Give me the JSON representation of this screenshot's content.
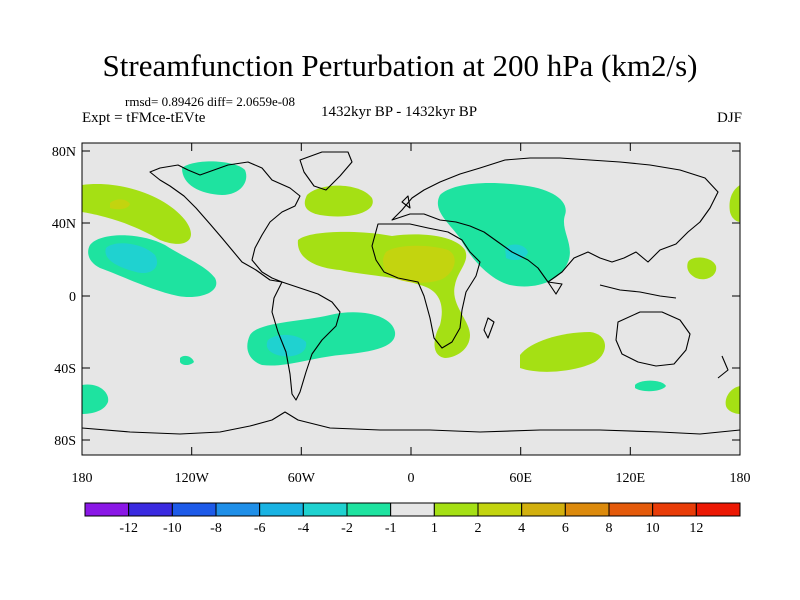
{
  "header": {
    "title": "Streamfunction Perturbation at 200 hPa (km2/s)",
    "stats": "rmsd= 0.89426 diff= 2.0659e-08",
    "experiment": "Expt = tFMce-tEVte",
    "period": "1432kyr BP - 1432kyr BP",
    "season": "DJF"
  },
  "map": {
    "lat_ticks": [
      "80N",
      "40N",
      "0",
      "40S",
      "80S"
    ],
    "lon_ticks": [
      "180",
      "120W",
      "60W",
      "0",
      "60E",
      "120E",
      "180"
    ],
    "background_color": "#e6e6e6",
    "coast_color": "#000000"
  },
  "colorbar": {
    "labels": [
      "-12",
      "-10",
      "-8",
      "-6",
      "-4",
      "-2",
      "-1",
      "1",
      "2",
      "4",
      "6",
      "8",
      "10",
      "12"
    ],
    "colors": [
      "#8a17e6",
      "#3a2ae0",
      "#1d5ae8",
      "#1f8fe8",
      "#19b3e3",
      "#1fd2d0",
      "#1ee3a0",
      "#e6e6e6",
      "#a5e014",
      "#c3d40f",
      "#d2b00e",
      "#dc8a0c",
      "#e45a0a",
      "#e83c08",
      "#ec1804"
    ]
  }
}
